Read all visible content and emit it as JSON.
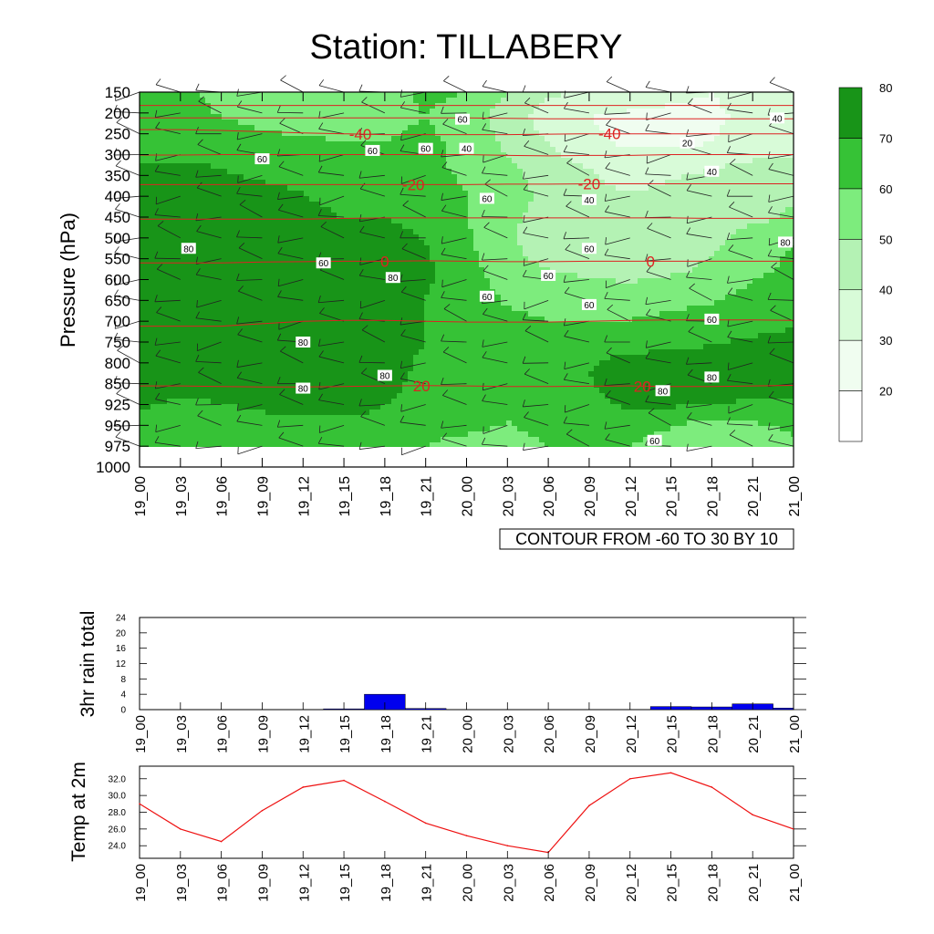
{
  "title": "Station: TILLABERY",
  "colors": {
    "band_colors": [
      "#ffffff",
      "#f0fdf0",
      "#d8fbd8",
      "#b4f2b4",
      "#7dec7d",
      "#36c236",
      "#189418"
    ],
    "temp_contour": "#dd2222",
    "rain_bar": "#0000ee",
    "temp_line": "#ee1111"
  },
  "chart_data": [
    {
      "type": "heatmap",
      "title": "Station: TILLABERY",
      "ylabel": "Pressure (hPa)",
      "xlabel": "",
      "x_tick_labels": [
        "19_00",
        "19_03",
        "19_06",
        "19_09",
        "19_12",
        "19_15",
        "19_18",
        "19_21",
        "20_00",
        "20_03",
        "20_06",
        "20_09",
        "20_12",
        "20_15",
        "20_18",
        "20_21",
        "21_00"
      ],
      "y_tick_labels": [
        "150",
        "200",
        "250",
        "300",
        "350",
        "400",
        "450",
        "500",
        "550",
        "600",
        "650",
        "700",
        "750",
        "800",
        "850",
        "925",
        "950",
        "975",
        "1000"
      ],
      "colorbar_levels": [
        20,
        30,
        40,
        50,
        60,
        70,
        80
      ],
      "colorbar_labels": [
        "20",
        "30",
        "40",
        "50",
        "60",
        "70",
        "80"
      ],
      "colorbar_placement": "right",
      "shaded_variable_grid": [
        [
          60,
          62,
          58,
          52,
          50,
          52,
          55,
          62,
          60,
          50,
          42,
          38,
          35,
          32,
          30,
          35,
          30
        ],
        [
          60,
          62,
          60,
          58,
          55,
          56,
          58,
          60,
          55,
          45,
          35,
          30,
          28,
          28,
          28,
          32,
          30
        ],
        [
          62,
          64,
          65,
          62,
          62,
          60,
          60,
          62,
          58,
          48,
          40,
          32,
          28,
          28,
          30,
          36,
          35
        ],
        [
          72,
          72,
          70,
          68,
          66,
          62,
          62,
          62,
          58,
          52,
          45,
          40,
          36,
          38,
          40,
          42,
          45
        ],
        [
          75,
          74,
          72,
          72,
          70,
          68,
          68,
          66,
          60,
          54,
          48,
          42,
          40,
          42,
          44,
          46,
          48
        ],
        [
          82,
          76,
          74,
          74,
          72,
          70,
          70,
          66,
          60,
          52,
          46,
          44,
          42,
          44,
          46,
          48,
          52
        ],
        [
          80,
          76,
          76,
          80,
          76,
          74,
          78,
          70,
          62,
          52,
          44,
          46,
          44,
          46,
          48,
          56,
          60
        ],
        [
          72,
          72,
          72,
          72,
          72,
          74,
          80,
          72,
          64,
          54,
          50,
          48,
          46,
          48,
          52,
          58,
          62
        ],
        [
          74,
          72,
          70,
          70,
          72,
          72,
          76,
          70,
          66,
          58,
          56,
          54,
          54,
          56,
          58,
          62,
          66
        ],
        [
          72,
          72,
          70,
          70,
          72,
          72,
          72,
          70,
          66,
          62,
          60,
          60,
          60,
          62,
          64,
          66,
          68
        ],
        [
          72,
          72,
          72,
          74,
          74,
          74,
          72,
          70,
          68,
          66,
          66,
          66,
          66,
          68,
          70,
          72,
          74
        ],
        [
          76,
          72,
          76,
          80,
          82,
          82,
          74,
          68,
          66,
          64,
          66,
          70,
          78,
          80,
          82,
          80,
          74
        ],
        [
          74,
          70,
          72,
          76,
          80,
          80,
          72,
          66,
          64,
          62,
          64,
          68,
          74,
          76,
          74,
          72,
          70
        ],
        [
          66,
          64,
          64,
          66,
          68,
          68,
          66,
          62,
          62,
          60,
          62,
          64,
          66,
          62,
          58,
          60,
          62
        ],
        [
          64,
          62,
          62,
          62,
          64,
          64,
          62,
          60,
          58,
          58,
          60,
          60,
          60,
          54,
          52,
          55,
          58
        ]
      ],
      "temperature_contours": [
        {
          "level": -40,
          "label": "-40"
        },
        {
          "level": -20,
          "label": "-20"
        },
        {
          "level": 0,
          "label": "0"
        },
        {
          "level": 20,
          "label": "20"
        }
      ],
      "contour_info": "CONTOUR FROM -60 TO 30 BY 10",
      "contour_inline_labels": [
        {
          "text": "60",
          "x": 7.9,
          "p": 215
        },
        {
          "text": "40",
          "x": 15.6,
          "p": 212
        },
        {
          "text": "20",
          "x": 13.4,
          "p": 272
        },
        {
          "text": "60",
          "x": 3.0,
          "p": 310
        },
        {
          "text": "60",
          "x": 5.7,
          "p": 290
        },
        {
          "text": "60",
          "x": 7.0,
          "p": 285
        },
        {
          "text": "40",
          "x": 8.0,
          "p": 285
        },
        {
          "text": "40",
          "x": 14.0,
          "p": 340
        },
        {
          "text": "60",
          "x": 8.5,
          "p": 405
        },
        {
          "text": "40",
          "x": 11.0,
          "p": 408
        },
        {
          "text": "80",
          "x": 1.2,
          "p": 525
        },
        {
          "text": "60",
          "x": 4.5,
          "p": 560
        },
        {
          "text": "80",
          "x": 6.2,
          "p": 595
        },
        {
          "text": "60",
          "x": 11.0,
          "p": 525
        },
        {
          "text": "60",
          "x": 10.0,
          "p": 590
        },
        {
          "text": "60",
          "x": 8.5,
          "p": 640
        },
        {
          "text": "60",
          "x": 11.0,
          "p": 660
        },
        {
          "text": "60",
          "x": 14.0,
          "p": 695
        },
        {
          "text": "80",
          "x": 15.8,
          "p": 510
        },
        {
          "text": "80",
          "x": 4.0,
          "p": 750
        },
        {
          "text": "80",
          "x": 6.0,
          "p": 830
        },
        {
          "text": "80",
          "x": 4.0,
          "p": 866
        },
        {
          "text": "80",
          "x": 14.0,
          "p": 834
        },
        {
          "text": "80",
          "x": 12.8,
          "p": 875
        },
        {
          "text": "60",
          "x": 12.6,
          "p": 968
        }
      ]
    },
    {
      "type": "bar",
      "ylabel": "3hr rain total",
      "categories": [
        "19_00",
        "19_03",
        "19_06",
        "19_09",
        "19_12",
        "19_15",
        "19_18",
        "19_21",
        "20_00",
        "20_03",
        "20_06",
        "20_09",
        "20_12",
        "20_15",
        "20_18",
        "20_21",
        "21_00"
      ],
      "values": [
        0,
        0,
        0,
        0,
        0,
        0.2,
        4.0,
        0.3,
        0,
        0,
        0,
        0,
        0,
        0.8,
        0.7,
        1.5,
        0.4
      ],
      "ylim": [
        0,
        24
      ],
      "y_tick_labels": [
        "0",
        "4",
        "8",
        "12",
        "16",
        "20",
        "24"
      ]
    },
    {
      "type": "line",
      "ylabel": "Temp at 2m",
      "categories": [
        "19_00",
        "19_03",
        "19_06",
        "19_09",
        "19_12",
        "19_15",
        "19_18",
        "19_21",
        "20_00",
        "20_03",
        "20_06",
        "20_09",
        "20_12",
        "20_15",
        "20_18",
        "20_21",
        "21_00"
      ],
      "values": [
        29.0,
        26.0,
        24.5,
        28.2,
        31.0,
        31.8,
        29.3,
        26.7,
        25.2,
        24.0,
        23.2,
        28.8,
        32.0,
        32.7,
        31.0,
        27.7,
        26.0
      ],
      "ylim": [
        22.5,
        33.5
      ],
      "y_tick_labels": [
        "24.0",
        "26.0",
        "28.0",
        "30.0",
        "32.0"
      ]
    }
  ]
}
